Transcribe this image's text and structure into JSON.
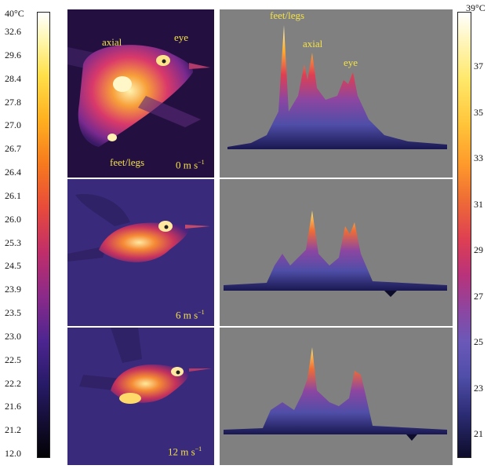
{
  "left_scale": {
    "top_label": "40°C",
    "ticks": [
      "32.6",
      "29.6",
      "28.4",
      "27.8",
      "27.0",
      "26.7",
      "26.4",
      "26.1",
      "26.0",
      "25.3",
      "24.5",
      "23.9",
      "23.5",
      "23.0",
      "22.5",
      "22.2",
      "21.6",
      "21.2",
      "12.0"
    ]
  },
  "right_scale": {
    "top_label": "39°C",
    "ticks": [
      "37",
      "35",
      "33",
      "31",
      "29",
      "27",
      "25",
      "23",
      "21"
    ]
  },
  "thermal_images": [
    {
      "speed": "0 m s",
      "speed_exp": "−1",
      "annotations": {
        "feet_legs": "feet/legs",
        "axial": "axial",
        "eye": "eye"
      }
    },
    {
      "speed": "6 m s",
      "speed_exp": "−1"
    },
    {
      "speed": "12 m s",
      "speed_exp": "−1"
    }
  ],
  "surface_plots": {
    "top_annotations": {
      "feet_legs": "feet/legs",
      "axial": "axial",
      "eye": "eye"
    }
  },
  "colors": {
    "annotation": "#f3e24a",
    "plot_background": "#808080"
  }
}
